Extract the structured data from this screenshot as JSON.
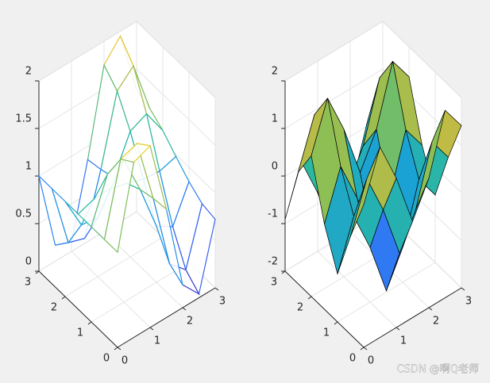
{
  "chart_data": [
    {
      "type": "mesh",
      "x": [
        0,
        0.5,
        1,
        1.5,
        2,
        2.5,
        3
      ],
      "y": [
        0,
        0.5,
        1,
        1.5,
        2,
        2.5,
        3
      ],
      "z": [
        [
          1,
          1.84,
          1.91,
          1.14,
          0.24,
          0.04,
          0.72
        ],
        [
          1,
          1.74,
          1.8,
          1.12,
          0.33,
          0.16,
          0.75
        ],
        [
          1,
          1.45,
          1.49,
          1.08,
          0.59,
          0.48,
          0.85
        ],
        [
          1,
          1.06,
          1.06,
          1.01,
          0.95,
          0.93,
          0.98
        ],
        [
          1,
          0.65,
          0.62,
          0.94,
          1.32,
          1.4,
          1.12
        ],
        [
          1,
          0.33,
          0.27,
          0.89,
          1.61,
          1.77,
          1.22
        ],
        [
          1,
          0.17,
          0.1,
          0.86,
          1.75,
          1.95,
          1.28
        ]
      ],
      "xlim": [
        0,
        3
      ],
      "ylim": [
        0,
        3
      ],
      "zlim": [
        0,
        2
      ],
      "xticks": [
        0,
        1,
        2,
        3
      ],
      "yticks": [
        0,
        1,
        2,
        3
      ],
      "zticks": [
        0,
        0.5,
        1,
        1.5,
        2
      ],
      "grid": true,
      "colormap": [
        "#3e26a8",
        "#4352e8",
        "#2e7cf3",
        "#1aa1d6",
        "#2bb8a0",
        "#8bbf55",
        "#e0b83a",
        "#f9fb0e"
      ]
    },
    {
      "type": "surf",
      "x": [
        0,
        0.5,
        1,
        1.5,
        2,
        2.5,
        3
      ],
      "y": [
        0,
        0.5,
        1,
        1.5,
        2,
        2.5,
        3
      ],
      "z": [
        [
          1,
          2.0,
          1.14,
          0.02,
          0.72,
          1.94,
          1.41
        ],
        [
          0.07,
          1.07,
          0.21,
          -0.91,
          -0.21,
          1.01,
          0.48
        ],
        [
          -0.99,
          0.01,
          -0.85,
          -1.97,
          -1.27,
          -0.05,
          -0.58
        ],
        [
          -0.21,
          0.79,
          -0.07,
          -1.19,
          -0.49,
          0.73,
          0.2
        ],
        [
          0.96,
          1.96,
          1.1,
          -0.02,
          0.68,
          1.9,
          1.37
        ],
        [
          0.35,
          1.35,
          0.49,
          -0.63,
          0.07,
          1.29,
          0.76
        ],
        [
          -0.91,
          0.09,
          -0.77,
          -1.89,
          -1.19,
          0.03,
          -0.5
        ]
      ],
      "xlim": [
        0,
        3
      ],
      "ylim": [
        0,
        3
      ],
      "zlim": [
        -2,
        2
      ],
      "xticks": [
        0,
        1,
        2,
        3
      ],
      "yticks": [
        0,
        1,
        2,
        3
      ],
      "zticks": [
        -2,
        -1,
        0,
        1,
        2
      ],
      "grid": true,
      "edgecolor": "#000000",
      "colormap": [
        "#3e26a8",
        "#4352e8",
        "#2e7cf3",
        "#1aa1d6",
        "#2bb8a0",
        "#8bbf55",
        "#e0b83a",
        "#f9fb0e"
      ]
    }
  ],
  "watermark": "CSDN @啊Q老师"
}
